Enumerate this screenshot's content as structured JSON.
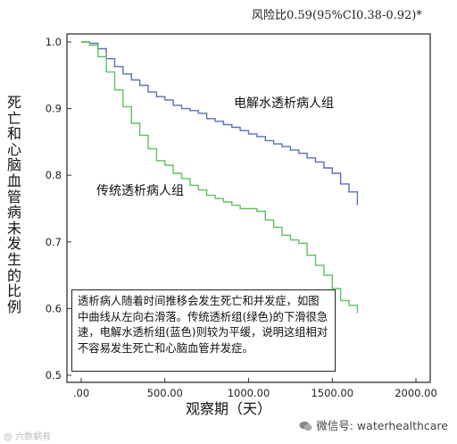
{
  "header": {
    "hazard_ratio": "风险比0.59(95%CI0.38-0.92)*"
  },
  "chart_data": {
    "type": "line",
    "step": true,
    "xlabel": "观察期（天）",
    "ylabel": "死亡和心脑血管病未发生的比例",
    "xlim": [
      0,
      2000
    ],
    "ylim": [
      0.5,
      1.0
    ],
    "x_ticks": [
      ".00",
      "500.00",
      "1000.00",
      "1500.00",
      "2000.00"
    ],
    "y_ticks": [
      "0.5",
      "0.6",
      "0.7",
      "0.8",
      "0.9",
      "1.0"
    ],
    "series": [
      {
        "name": "电解水透析病人组",
        "color": "#5a6fb5",
        "x": [
          0,
          50,
          100,
          150,
          200,
          250,
          300,
          350,
          400,
          450,
          500,
          550,
          600,
          650,
          700,
          750,
          800,
          850,
          900,
          950,
          1000,
          1050,
          1100,
          1150,
          1200,
          1250,
          1300,
          1350,
          1400,
          1450,
          1500,
          1550,
          1600,
          1650
        ],
        "y": [
          1.0,
          0.998,
          0.99,
          0.975,
          0.963,
          0.952,
          0.943,
          0.935,
          0.925,
          0.918,
          0.913,
          0.905,
          0.9,
          0.897,
          0.893,
          0.885,
          0.881,
          0.876,
          0.872,
          0.867,
          0.862,
          0.858,
          0.852,
          0.847,
          0.843,
          0.838,
          0.833,
          0.826,
          0.82,
          0.811,
          0.803,
          0.787,
          0.775,
          0.755
        ]
      },
      {
        "name": "传统透析病人组",
        "color": "#5fc25f",
        "x": [
          0,
          50,
          100,
          150,
          200,
          250,
          300,
          350,
          400,
          450,
          500,
          550,
          600,
          650,
          700,
          750,
          800,
          850,
          900,
          950,
          1000,
          1050,
          1100,
          1150,
          1200,
          1250,
          1300,
          1350,
          1400,
          1450,
          1500,
          1550,
          1600,
          1650
        ],
        "y": [
          1.0,
          0.995,
          0.978,
          0.955,
          0.928,
          0.903,
          0.878,
          0.86,
          0.84,
          0.822,
          0.815,
          0.803,
          0.795,
          0.785,
          0.778,
          0.77,
          0.765,
          0.76,
          0.755,
          0.75,
          0.75,
          0.746,
          0.733,
          0.722,
          0.71,
          0.703,
          0.698,
          0.68,
          0.665,
          0.65,
          0.63,
          0.612,
          0.605,
          0.593
        ]
      }
    ],
    "annotations": [
      "透析病人随着时间推移会发生死亡和并发症，如图中曲线从左向右滑落。传统透析组(绿色)的下滑很急速，电解水透析组(蓝色)则较为平缓，说明这组相对不容易发生死亡和心脑血管并发症。"
    ],
    "grid": false
  },
  "footer": {
    "wechat": "微信号: waterhealthcare",
    "watermark": "@ 六数蜗有"
  }
}
